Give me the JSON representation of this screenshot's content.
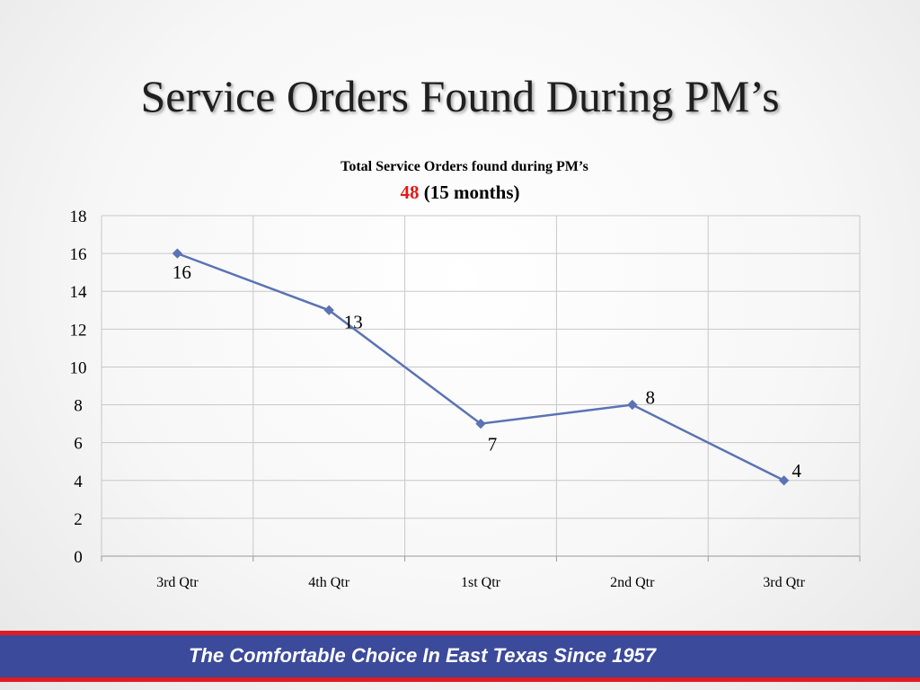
{
  "slide": {
    "title": "Service Orders Found During PM’s",
    "footer": "The Comfortable Choice In East Texas Since 1957"
  },
  "colors": {
    "line": "#5b73b4",
    "grid": "#c8c8c8",
    "highlight": "#e31b1b",
    "footer_band": "#3b4a9a",
    "footer_border": "#e11b22"
  },
  "chart_data": {
    "type": "line",
    "title": "Total Service Orders found during PM’s",
    "subtitle_value": "48",
    "subtitle_rest": "(15 months)",
    "categories": [
      "3rd Qtr",
      "4th Qtr",
      "1st Qtr",
      "2nd Qtr",
      "3rd Qtr"
    ],
    "series": [
      {
        "values": [
          16,
          13,
          7,
          8,
          4
        ],
        "data_labels": [
          "16",
          "13",
          "7",
          "8",
          "4"
        ]
      }
    ],
    "ylim": [
      0,
      18
    ],
    "yticks": [
      0,
      2,
      4,
      6,
      8,
      10,
      12,
      14,
      16,
      18
    ],
    "grid": true,
    "legend": "none",
    "xlabel": "",
    "ylabel": ""
  }
}
